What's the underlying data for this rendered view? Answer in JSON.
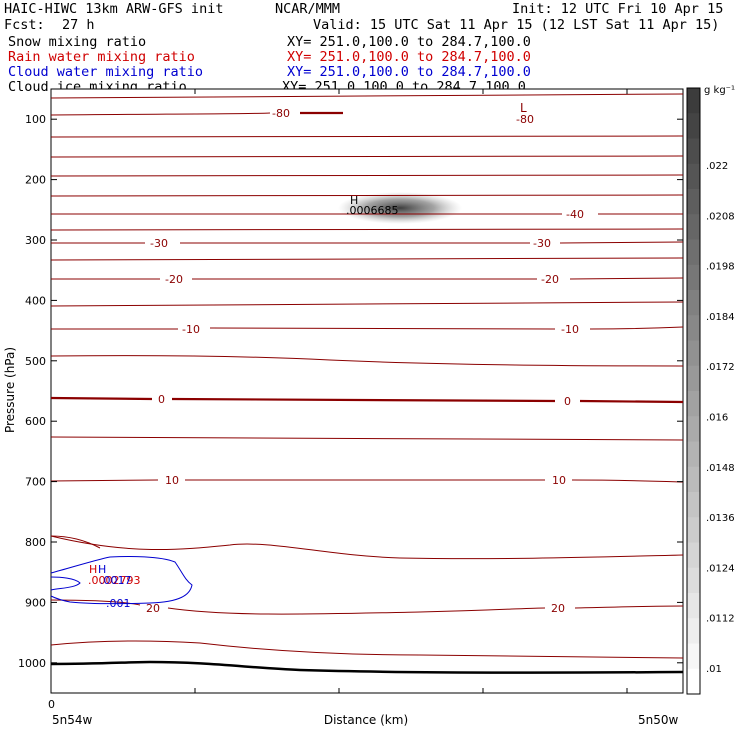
{
  "header": {
    "title_left": "HAIC-HIWC 13km ARW-GFS init",
    "title_center": "NCAR/MMM",
    "init": "Init: 12 UTC Fri 10 Apr 15",
    "fcst_label": "Fcst:",
    "fcst_value": "27 h",
    "valid": "Valid: 15 UTC Sat 11 Apr 15 (12 LST Sat 11 Apr 15)"
  },
  "fields": [
    {
      "name": "Snow mixing ratio",
      "xy": "XY= 251.0,100.0 to 284.7,100.0",
      "color": "#000000"
    },
    {
      "name": "Rain water mixing ratio",
      "xy": "XY= 251.0,100.0 to 284.7,100.0",
      "color": "#d00000"
    },
    {
      "name": "Cloud water mixing ratio",
      "xy": "XY= 251.0,100.0 to 284.7,100.0",
      "color": "#0000d0"
    },
    {
      "name": "Cloud ice mixing ratio",
      "xy": "XY= 251.0,100.0 to 284.7,100.0",
      "color": "#000000"
    }
  ],
  "chart_data": {
    "type": "contour",
    "ylabel": "Pressure (hPa)",
    "xlabel": "Distance (km)",
    "y_ticks": [
      100,
      200,
      300,
      400,
      500,
      600,
      700,
      800,
      900,
      1000
    ],
    "ylim": [
      1050,
      50
    ],
    "x_tick_label": "0",
    "x_left_label": "5n54w",
    "x_right_label": "5n50w",
    "colorbar": {
      "unit": "g kg⁻¹",
      "labels": [
        ".022",
        ".0208",
        ".0198",
        ".0184",
        ".0172",
        ".016",
        ".0148",
        ".0136",
        ".0124",
        ".0112",
        ".01"
      ]
    },
    "temperature_contours": [
      {
        "label": "-80",
        "color": "#8b0000"
      },
      {
        "label": "-40",
        "color": "#8b0000"
      },
      {
        "label": "-30",
        "color": "#8b0000"
      },
      {
        "label": "-20",
        "color": "#8b0000"
      },
      {
        "label": "-10",
        "color": "#8b0000"
      },
      {
        "label": "0",
        "color": "#8b0000"
      },
      {
        "label": "10",
        "color": "#8b0000"
      },
      {
        "label": "20",
        "color": "#8b0000"
      }
    ],
    "annotations": {
      "low_marker": "L",
      "low_value": "-80",
      "snow_max_marker": "H",
      "snow_max_value": ".0006685",
      "rain_max_marker": "H",
      "rain_max_value": ".0002793",
      "cloud_max_marker": "H",
      "cloud_max_value": ".0017",
      "cloud_contour_label": ".001"
    }
  }
}
